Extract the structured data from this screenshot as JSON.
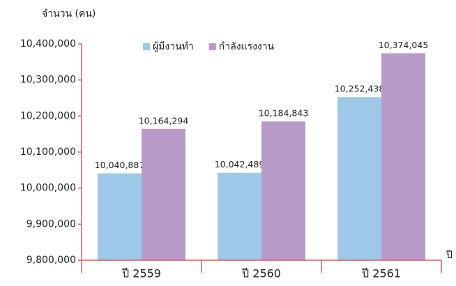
{
  "chart_data": {
    "type": "bar",
    "y_axis_label": "จำนวน (คน)",
    "x_axis_label": "ปี",
    "categories": [
      "ปี 2559",
      "ปี 2560",
      "ปี 2561"
    ],
    "series": [
      {
        "name": "ผู้มีงานทำ",
        "color": "#9dc8e8",
        "values": [
          10040887,
          10042489,
          10252438
        ],
        "value_labels": [
          "10,040,887",
          "10,042,489",
          "10,252,438"
        ]
      },
      {
        "name": "กำลังแรงงาน",
        "color": "#b89ac8",
        "values": [
          10164294,
          10184843,
          10374045
        ],
        "value_labels": [
          "10,164,294",
          "10,184,843",
          "10,374,045"
        ]
      }
    ],
    "ylim": [
      9800000,
      10400000
    ],
    "yticks": [
      {
        "value": 9800000,
        "label": "9,800,000"
      },
      {
        "value": 9900000,
        "label": "9,900,000"
      },
      {
        "value": 10000000,
        "label": "10,000,000"
      },
      {
        "value": 10100000,
        "label": "10,100,000"
      },
      {
        "value": 10200000,
        "label": "10,200,000"
      },
      {
        "value": 10300000,
        "label": "10,300,000"
      },
      {
        "value": 10400000,
        "label": "10,400,000"
      }
    ],
    "axis_color": "#e05a5a",
    "legend": "top"
  }
}
